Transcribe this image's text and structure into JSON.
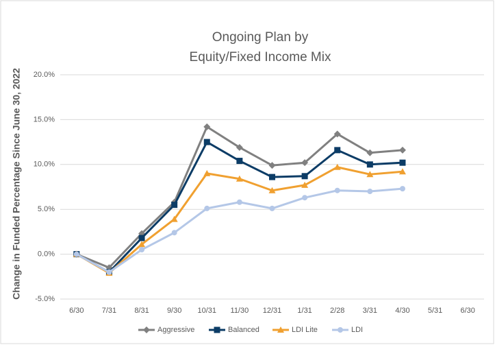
{
  "chart_data": {
    "type": "line",
    "title": [
      "Ongoing Plan by",
      "Equity/Fixed Income Mix"
    ],
    "ylabel": "Change in Funded Percentage Since June 30, 2022",
    "categories": [
      "6/30",
      "7/31",
      "8/31",
      "9/30",
      "10/31",
      "11/30",
      "12/31",
      "1/31",
      "2/28",
      "3/31",
      "4/30",
      "5/31",
      "6/30"
    ],
    "ylim": [
      -5,
      20
    ],
    "yticks": [
      {
        "value": -5,
        "label": "-5.0%"
      },
      {
        "value": 0,
        "label": "0.0%"
      },
      {
        "value": 5,
        "label": "5.0%"
      },
      {
        "value": 10,
        "label": "10.0%"
      },
      {
        "value": 15,
        "label": "15.0%"
      },
      {
        "value": 20,
        "label": "20.0%"
      }
    ],
    "grid": true,
    "legend": "bottom",
    "series": [
      {
        "name": "Aggressive",
        "color": "#808080",
        "marker": "diamond",
        "values": [
          0,
          -1.5,
          2.3,
          5.8,
          14.2,
          11.9,
          9.9,
          10.2,
          13.4,
          11.3,
          11.6,
          null,
          null
        ]
      },
      {
        "name": "Balanced",
        "color": "#0c3c66",
        "marker": "square",
        "values": [
          0,
          -2.0,
          1.8,
          5.5,
          12.5,
          10.4,
          8.6,
          8.7,
          11.6,
          10.0,
          10.2,
          null,
          null
        ]
      },
      {
        "name": "LDI Lite",
        "color": "#f0a030",
        "marker": "triangle",
        "values": [
          0,
          -2.1,
          1.1,
          3.9,
          9.0,
          8.4,
          7.1,
          7.7,
          9.7,
          8.9,
          9.2,
          null,
          null
        ]
      },
      {
        "name": "LDI",
        "color": "#b4c7e7",
        "marker": "circle",
        "values": [
          0,
          -2.0,
          0.5,
          2.4,
          5.1,
          5.8,
          5.1,
          6.3,
          7.1,
          7.0,
          7.3,
          null,
          null
        ]
      }
    ]
  }
}
